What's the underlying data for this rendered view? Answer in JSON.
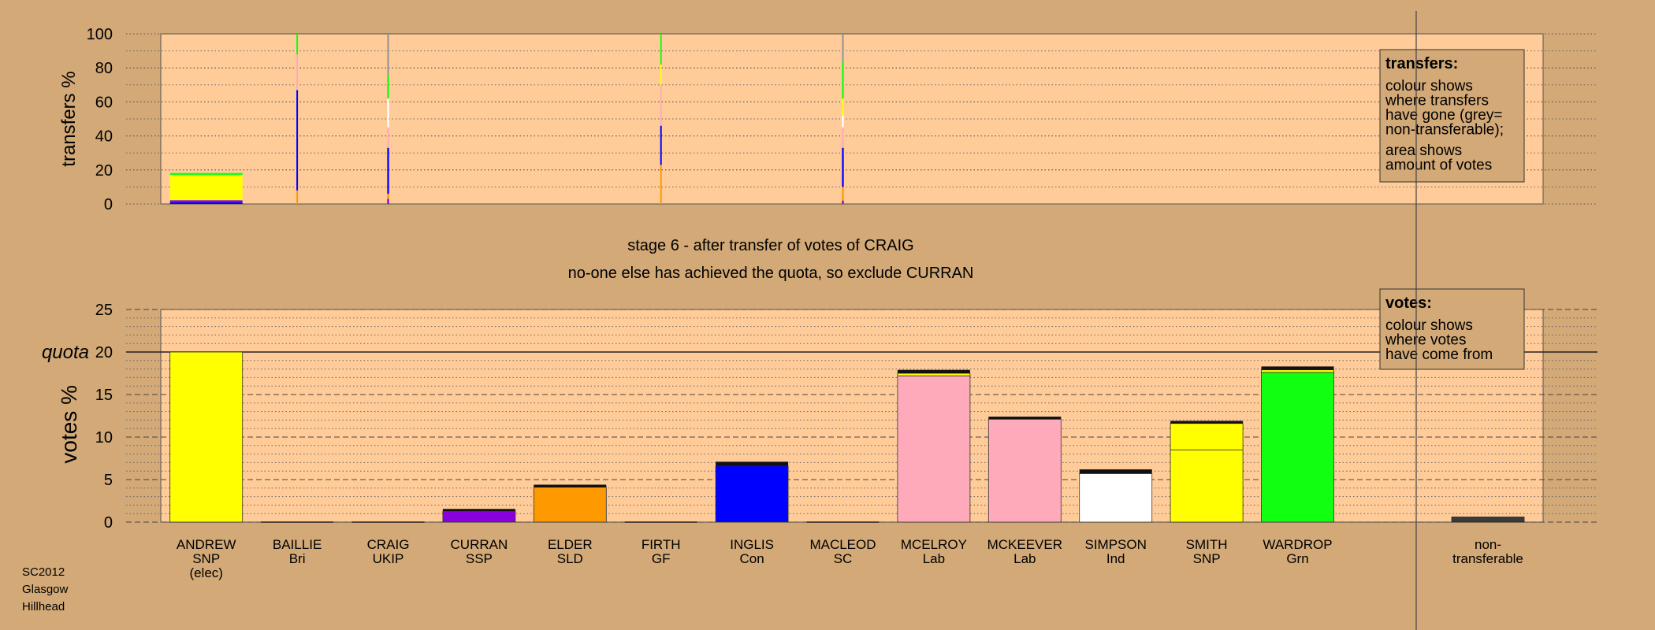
{
  "colors": {
    "page_bg": "#d2a977",
    "plot_bg": "#ffcc99",
    "legend_bg": "#d2a977",
    "SNP": "#ffff00",
    "Bri": "#ffcc99",
    "UKIP": "#9a9a9a",
    "SSP": "#8800dd",
    "SLD": "#ff9900",
    "GF": "#11ff11",
    "Con": "#0000ff",
    "SC": "#ffffff",
    "Lab": "#ffaabb",
    "Ind": "#ffffff",
    "Grn": "#11ff11",
    "nontransferable": "#3a3a3a",
    "new_votes": "#111111"
  },
  "footer": {
    "line1": "SC2012",
    "line2": "Glasgow",
    "line3": "Hillhead"
  },
  "chart_data": [
    {
      "id": "transfers",
      "type": "bar",
      "ylabel": "transfers %",
      "ylim": [
        0,
        100
      ],
      "yticks": [
        0,
        20,
        40,
        60,
        80,
        100
      ],
      "grid": "dotted",
      "legend": {
        "title": "transfers:",
        "lines": [
          "colour shows",
          "where transfers",
          "have gone (grey=",
          "non-transferable);",
          "",
          "area shows",
          "amount of votes"
        ],
        "placement": "top-right"
      },
      "bars": [
        {
          "category": "ANDREW",
          "width_share": 1.0,
          "segments": [
            {
              "party": "Con",
              "from": 0,
              "to": 1.0
            },
            {
              "party": "SSP",
              "from": 1.0,
              "to": 2.2
            },
            {
              "party": "SNP",
              "from": 2.2,
              "to": 17.0
            },
            {
              "party": "Grn",
              "from": 17.0,
              "to": 18.2
            }
          ]
        },
        {
          "category": "BAILLIE",
          "width_share": 0.012,
          "segments": [
            {
              "party": "SLD",
              "from": 0,
              "to": 8
            },
            {
              "party": "Con",
              "from": 8,
              "to": 67
            },
            {
              "party": "Lab",
              "from": 67,
              "to": 88
            },
            {
              "party": "Grn",
              "from": 88,
              "to": 100
            }
          ]
        },
        {
          "category": "CRAIG",
          "width_share": 0.025,
          "segments": [
            {
              "party": "SSP",
              "from": 0,
              "to": 3
            },
            {
              "party": "SLD",
              "from": 3,
              "to": 6
            },
            {
              "party": "Con",
              "from": 6,
              "to": 33
            },
            {
              "party": "Lab",
              "from": 33,
              "to": 45
            },
            {
              "party": "SC",
              "from": 45,
              "to": 62
            },
            {
              "party": "Grn",
              "from": 62,
              "to": 76
            },
            {
              "party": "UKIP",
              "from": 76,
              "to": 100
            }
          ]
        },
        {
          "category": "FIRTH",
          "width_share": 0.012,
          "segments": [
            {
              "party": "SLD",
              "from": 0,
              "to": 23
            },
            {
              "party": "Con",
              "from": 23,
              "to": 46
            },
            {
              "party": "Lab",
              "from": 46,
              "to": 70
            },
            {
              "party": "SNP",
              "from": 70,
              "to": 82
            },
            {
              "party": "Grn",
              "from": 82,
              "to": 100
            }
          ]
        },
        {
          "category": "MACLEOD",
          "width_share": 0.025,
          "segments": [
            {
              "party": "SSP",
              "from": 0,
              "to": 2
            },
            {
              "party": "SLD",
              "from": 2,
              "to": 10
            },
            {
              "party": "Con",
              "from": 10,
              "to": 33
            },
            {
              "party": "Lab",
              "from": 33,
              "to": 45
            },
            {
              "party": "SC",
              "from": 45,
              "to": 52
            },
            {
              "party": "SNP",
              "from": 52,
              "to": 62
            },
            {
              "party": "Grn",
              "from": 62,
              "to": 84
            },
            {
              "party": "UKIP",
              "from": 84,
              "to": 100
            }
          ]
        }
      ]
    },
    {
      "id": "votes",
      "type": "bar",
      "ylabel": "votes %",
      "quota_label": "quota",
      "quota": 20,
      "ylim": [
        0,
        25
      ],
      "yticks": [
        0,
        5,
        10,
        15,
        20,
        25
      ],
      "grid": "dashed",
      "legend": {
        "title": "votes:",
        "lines": [
          "colour shows",
          "where votes",
          "have come from"
        ],
        "placement": "top-right"
      },
      "categories": [
        {
          "name": "ANDREW",
          "party": "SNP",
          "note": "(elec)"
        },
        {
          "name": "BAILLIE",
          "party": "Bri",
          "note": ""
        },
        {
          "name": "CRAIG",
          "party": "UKIP",
          "note": ""
        },
        {
          "name": "CURRAN",
          "party": "SSP",
          "note": ""
        },
        {
          "name": "ELDER",
          "party": "SLD",
          "note": ""
        },
        {
          "name": "FIRTH",
          "party": "GF",
          "note": ""
        },
        {
          "name": "INGLIS",
          "party": "Con",
          "note": ""
        },
        {
          "name": "MACLEOD",
          "party": "SC",
          "note": ""
        },
        {
          "name": "MCELROY",
          "party": "Lab",
          "note": ""
        },
        {
          "name": "MCKEEVER",
          "party": "Lab",
          "note": ""
        },
        {
          "name": "SIMPSON",
          "party": "Ind",
          "note": ""
        },
        {
          "name": "SMITH",
          "party": "SNP",
          "note": ""
        },
        {
          "name": "WARDROP",
          "party": "Grn",
          "note": ""
        }
      ],
      "nontransferable_label_1": "non-",
      "nontransferable_label_2": "transferable",
      "bars": [
        {
          "category": "ANDREW",
          "segments": [
            {
              "party": "SNP",
              "from": 0,
              "to": 20.0
            }
          ]
        },
        {
          "category": "BAILLIE",
          "segments": []
        },
        {
          "category": "CRAIG",
          "segments": []
        },
        {
          "category": "CURRAN",
          "segments": [
            {
              "party": "SSP",
              "from": 0,
              "to": 1.3
            },
            {
              "party": "new_votes",
              "from": 1.3,
              "to": 1.55
            }
          ]
        },
        {
          "category": "ELDER",
          "segments": [
            {
              "party": "SLD",
              "from": 0,
              "to": 4.1
            },
            {
              "party": "new_votes",
              "from": 4.1,
              "to": 4.4
            }
          ]
        },
        {
          "category": "FIRTH",
          "segments": []
        },
        {
          "category": "INGLIS",
          "segments": [
            {
              "party": "Con",
              "from": 0,
              "to": 6.6
            },
            {
              "party": "new_votes",
              "from": 6.6,
              "to": 7.1
            }
          ]
        },
        {
          "category": "MACLEOD",
          "segments": []
        },
        {
          "category": "MCELROY",
          "segments": [
            {
              "party": "Lab",
              "from": 0,
              "to": 17.2
            },
            {
              "party": "SNP",
              "from": 17.2,
              "to": 17.5
            },
            {
              "party": "new_votes",
              "from": 17.5,
              "to": 17.9
            }
          ]
        },
        {
          "category": "MCKEEVER",
          "segments": [
            {
              "party": "Lab",
              "from": 0,
              "to": 12.1
            },
            {
              "party": "new_votes",
              "from": 12.1,
              "to": 12.4
            }
          ]
        },
        {
          "category": "SIMPSON",
          "segments": [
            {
              "party": "Ind",
              "from": 0,
              "to": 5.7
            },
            {
              "party": "new_votes",
              "from": 5.7,
              "to": 6.2
            }
          ]
        },
        {
          "category": "SMITH",
          "segments": [
            {
              "party": "SNP",
              "from": 0,
              "to": 8.5
            },
            {
              "party": "SNP",
              "from": 8.5,
              "to": 11.6
            },
            {
              "party": "new_votes",
              "from": 11.6,
              "to": 11.9
            }
          ]
        },
        {
          "category": "WARDROP",
          "segments": [
            {
              "party": "Grn",
              "from": 0,
              "to": 17.6
            },
            {
              "party": "SNP",
              "from": 17.6,
              "to": 17.9
            },
            {
              "party": "new_votes",
              "from": 17.9,
              "to": 18.3
            }
          ]
        }
      ],
      "nontransferable": 0.6
    }
  ],
  "captions": {
    "stage": "stage 6 - after transfer of votes of CRAIG",
    "action": "no-one else has achieved the quota, so exclude CURRAN"
  }
}
